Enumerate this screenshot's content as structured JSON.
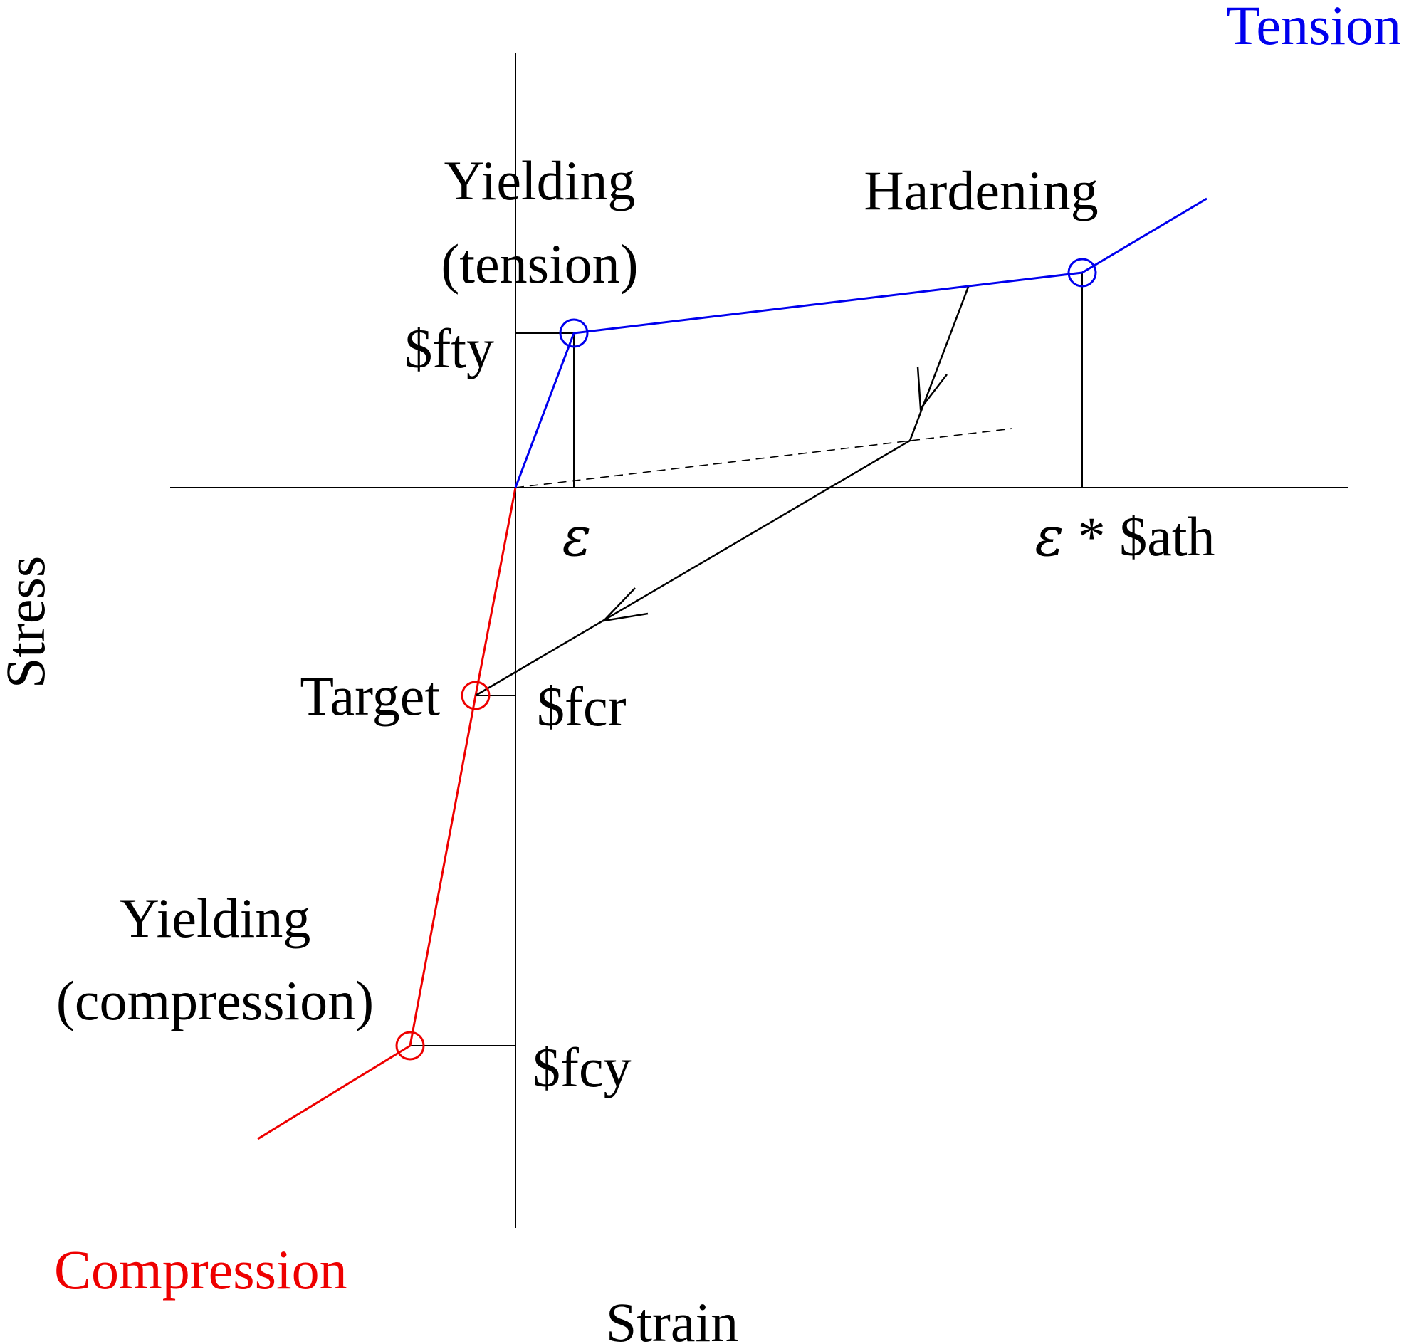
{
  "labels": {
    "tension": "Tension",
    "compression": "Compression",
    "stress_axis": "Stress",
    "strain_axis": "Strain",
    "yielding_tension_line1": "Yielding",
    "yielding_tension_line2": "(tension)",
    "hardening": "Hardening",
    "fty": "$fty",
    "epsilon": "ε",
    "epsilon_ath_eps": "ε",
    "epsilon_ath_rest": " * $ath",
    "target": "Target",
    "fcr": "$fcr",
    "yielding_compression_line1": "Yielding",
    "yielding_compression_line2": "(compression)",
    "fcy": "$fcy"
  },
  "colors": {
    "tension": "#0000ee",
    "compression": "#ee0000",
    "axes": "#000000",
    "unloading_path": "#000000"
  }
}
